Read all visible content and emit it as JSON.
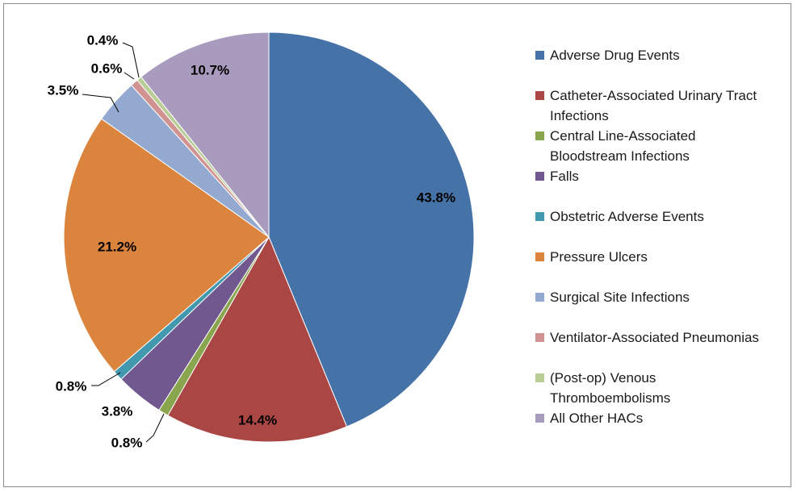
{
  "chart_data": {
    "type": "pie",
    "title": "",
    "legend_position": "right",
    "start_angle_deg": 90,
    "direction": "clockwise",
    "categories": [
      "Adverse Drug Events",
      "Catheter-Associated Urinary Tract Infections",
      "Central Line-Associated Bloodstream Infections",
      "Falls",
      "Obstetric Adverse Events",
      "Pressure Ulcers",
      "Surgical Site Infections",
      "Ventilator-Associated Pneumonias",
      "(Post-op) Venous Thromboembolisms",
      "All Other HACs"
    ],
    "values": [
      43.8,
      14.4,
      0.8,
      3.8,
      0.8,
      21.2,
      3.5,
      0.6,
      0.4,
      10.7
    ],
    "data_labels": [
      "43.8%",
      "14.4%",
      "0.8%",
      "3.8%",
      "0.8%",
      "21.2%",
      "3.5%",
      "0.6%",
      "0.4%",
      "10.7%"
    ],
    "colors": [
      "#4572a7",
      "#aa4643",
      "#89a54e",
      "#71588f",
      "#4198af",
      "#db843d",
      "#93a9cf",
      "#d19392",
      "#b9cd96",
      "#a99bbd"
    ]
  }
}
